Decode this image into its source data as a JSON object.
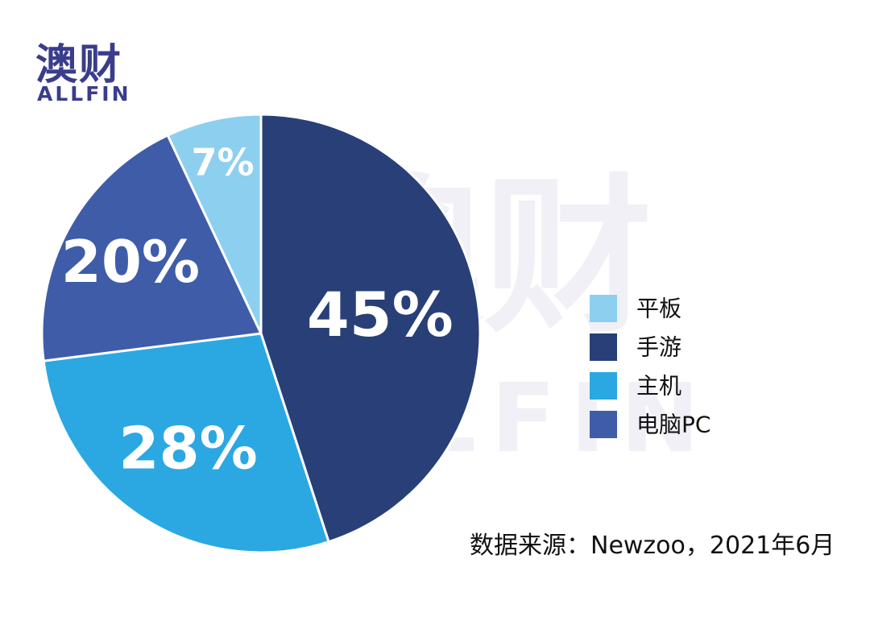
{
  "logo": {
    "cn": "澳财",
    "en": "ALLFIN"
  },
  "watermark": {
    "cn": "澳财",
    "en": "ALLFIN"
  },
  "source": "数据来源：Newzoo，2021年6月",
  "chart_data": {
    "type": "pie",
    "start_angle_deg": 0,
    "direction": "clockwise",
    "slices": [
      {
        "name": "手游",
        "value": 45,
        "label": "45%",
        "color": "#283f78"
      },
      {
        "name": "主机",
        "value": 28,
        "label": "28%",
        "color": "#2ba8e2"
      },
      {
        "name": "电脑PC",
        "value": 20,
        "label": "20%",
        "color": "#3f5ca9"
      },
      {
        "name": "平板",
        "value": 7,
        "label": "7%",
        "color": "#8dcfee"
      }
    ],
    "legend": {
      "placement": "right",
      "order": [
        "平板",
        "手游",
        "主机",
        "电脑PC"
      ]
    }
  }
}
